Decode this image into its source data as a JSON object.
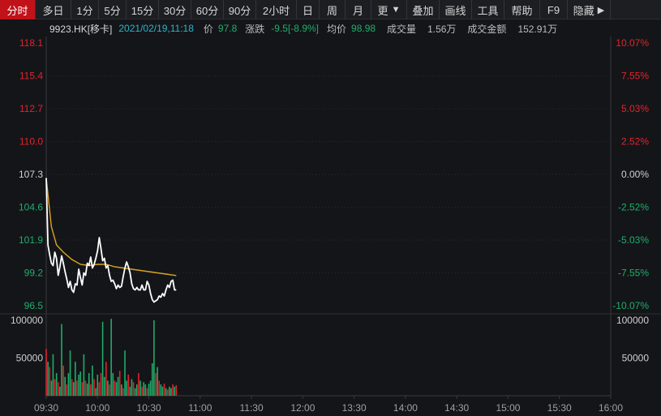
{
  "toolbar": {
    "items": [
      {
        "label": "分时",
        "active": true
      },
      {
        "label": "多日"
      },
      {
        "label": "1分"
      },
      {
        "label": "5分"
      },
      {
        "label": "15分"
      },
      {
        "label": "30分"
      },
      {
        "label": "60分"
      },
      {
        "label": "90分"
      },
      {
        "label": "2小时"
      },
      {
        "label": "日"
      },
      {
        "label": "周"
      },
      {
        "label": "月"
      },
      {
        "label": "更"
      },
      {
        "label": "叠加"
      },
      {
        "label": "画线"
      },
      {
        "label": "工具"
      },
      {
        "label": "帮助"
      },
      {
        "label": "F9"
      },
      {
        "label": "隐藏"
      }
    ],
    "more_arrow": "▼",
    "hide_arrow": "▶"
  },
  "info": {
    "symbol": "9923.HK[移卡]",
    "datetime": "2021/02/19,11:18",
    "price_label": "价",
    "price": "97.8",
    "change_label": "涨跌",
    "change": "-9.5[-8.9%]",
    "avg_label": "均价",
    "avg": "98.98",
    "volume_label": "成交量",
    "volume": "1.56万",
    "turnover_label": "成交金额",
    "turnover": "152.91万"
  },
  "colors": {
    "up": "#e0242c",
    "down": "#1fae6a",
    "price_line": "#ffffff",
    "avg_line": "#d9a521",
    "grid": "#2a2b30",
    "axis_text": "#a0a0a0"
  },
  "chart_data": [
    {
      "type": "line",
      "prev_close": 107.3,
      "ylim": [
        96.5,
        118.1
      ],
      "y_ticks_left": [
        "118.1",
        "115.4",
        "112.7",
        "110.0",
        "107.3",
        "104.6",
        "101.9",
        "99.2",
        "96.5"
      ],
      "y_ticks_right": [
        "10.07%",
        "7.55%",
        "5.03%",
        "2.52%",
        "0.00%",
        "-2.52%",
        "-5.03%",
        "-7.55%",
        "-10.07%"
      ],
      "x_ticks": [
        "09:30",
        "10:00",
        "10:30",
        "11:00",
        "11:30",
        "12:00",
        "13:30",
        "14:00",
        "14:30",
        "15:00",
        "15:30",
        "16:00"
      ],
      "series": [
        {
          "role": "price",
          "points": [
            [
              0,
              107.0
            ],
            [
              1,
              101.5
            ],
            [
              2,
              100.7
            ],
            [
              3,
              100.0
            ],
            [
              4,
              99.8
            ],
            [
              5,
              100.9
            ],
            [
              6,
              100.4
            ],
            [
              7,
              99.0
            ],
            [
              8,
              99.7
            ],
            [
              9,
              100.6
            ],
            [
              10,
              100.0
            ],
            [
              11,
              99.3
            ],
            [
              12,
              98.7
            ],
            [
              13,
              98.0
            ],
            [
              14,
              98.5
            ],
            [
              15,
              97.8
            ],
            [
              16,
              97.6
            ],
            [
              17,
              98.3
            ],
            [
              18,
              98.2
            ],
            [
              19,
              99.5
            ],
            [
              20,
              98.8
            ],
            [
              21,
              98.2
            ],
            [
              22,
              99.2
            ],
            [
              23,
              99.0
            ],
            [
              24,
              100.0
            ],
            [
              25,
              99.8
            ],
            [
              26,
              100.5
            ],
            [
              27,
              99.6
            ],
            [
              28,
              99.9
            ],
            [
              29,
              100.4
            ],
            [
              30,
              101.0
            ],
            [
              31,
              102.1
            ],
            [
              32,
              101.2
            ],
            [
              33,
              100.2
            ],
            [
              34,
              100.4
            ],
            [
              35,
              99.6
            ],
            [
              36,
              99.8
            ],
            [
              37,
              99.0
            ],
            [
              38,
              98.5
            ],
            [
              39,
              98.6
            ],
            [
              40,
              98.3
            ],
            [
              41,
              97.9
            ],
            [
              42,
              98.2
            ],
            [
              43,
              98.0
            ],
            [
              44,
              98.1
            ],
            [
              45,
              98.9
            ],
            [
              46,
              99.6
            ],
            [
              47,
              100.1
            ],
            [
              48,
              99.7
            ],
            [
              49,
              99.2
            ],
            [
              50,
              98.3
            ],
            [
              51,
              97.9
            ],
            [
              52,
              97.8
            ],
            [
              53,
              98.0
            ],
            [
              54,
              97.8
            ],
            [
              55,
              97.8
            ],
            [
              56,
              98.2
            ],
            [
              57,
              97.8
            ],
            [
              58,
              97.8
            ],
            [
              59,
              98.5
            ],
            [
              60,
              98.2
            ],
            [
              61,
              97.5
            ],
            [
              62,
              97.0
            ],
            [
              63,
              96.8
            ],
            [
              64,
              96.9
            ],
            [
              65,
              97.0
            ],
            [
              66,
              97.3
            ],
            [
              67,
              97.2
            ],
            [
              68,
              97.5
            ],
            [
              69,
              97.3
            ],
            [
              70,
              97.8
            ],
            [
              71,
              98.2
            ],
            [
              72,
              98.0
            ],
            [
              73,
              98.5
            ],
            [
              74,
              98.6
            ],
            [
              75,
              97.8
            ],
            [
              76,
              97.8
            ]
          ]
        },
        {
          "role": "average",
          "points": [
            [
              0,
              107.0
            ],
            [
              3,
              103.0
            ],
            [
              6,
              101.5
            ],
            [
              10,
              100.9
            ],
            [
              15,
              100.3
            ],
            [
              20,
              99.9
            ],
            [
              25,
              99.8
            ],
            [
              30,
              99.9
            ],
            [
              35,
              99.9
            ],
            [
              40,
              99.7
            ],
            [
              45,
              99.6
            ],
            [
              50,
              99.5
            ],
            [
              55,
              99.4
            ],
            [
              60,
              99.3
            ],
            [
              65,
              99.2
            ],
            [
              70,
              99.1
            ],
            [
              76,
              98.98
            ]
          ]
        }
      ]
    },
    {
      "type": "bar",
      "ylim": [
        0,
        100000
      ],
      "y_ticks": [
        "100000",
        "50000"
      ],
      "series": [
        {
          "name": "volume",
          "values": [
            62000,
            45000,
            38000,
            20000,
            55000,
            22000,
            30000,
            18000,
            12000,
            95000,
            40000,
            25000,
            15000,
            30000,
            60000,
            22000,
            18000,
            45000,
            20000,
            28000,
            32000,
            18000,
            55000,
            20000,
            16000,
            30000,
            15000,
            40000,
            22000,
            10000,
            28000,
            18000,
            30000,
            98000,
            25000,
            45000,
            20000,
            15000,
            102000,
            30000,
            20000,
            18000,
            25000,
            33000,
            15000,
            10000,
            60000,
            20000,
            28000,
            12000,
            22000,
            18000,
            10000,
            15000,
            30000,
            20000,
            12000,
            18000,
            15000,
            10000,
            16000,
            20000,
            43000,
            100000,
            30000,
            38000,
            20000,
            15000,
            12000,
            16000,
            10000,
            8000,
            12000,
            10000,
            15000,
            12000,
            14000
          ],
          "up": [
            1,
            0,
            1,
            0,
            0,
            1,
            0,
            1,
            0,
            0,
            1,
            0,
            1,
            0,
            0,
            1,
            0,
            0,
            1,
            0,
            0,
            1,
            0,
            1,
            0,
            0,
            1,
            0,
            1,
            0,
            0,
            1,
            1,
            0,
            0,
            1,
            0,
            1,
            0,
            0,
            1,
            0,
            0,
            1,
            0,
            1,
            0,
            0,
            1,
            0,
            0,
            1,
            0,
            0,
            1,
            0,
            1,
            0,
            0,
            1,
            0,
            0,
            0,
            0,
            1,
            0,
            1,
            0,
            0,
            1,
            0,
            1,
            0,
            0,
            1,
            0,
            1
          ]
        }
      ]
    }
  ]
}
